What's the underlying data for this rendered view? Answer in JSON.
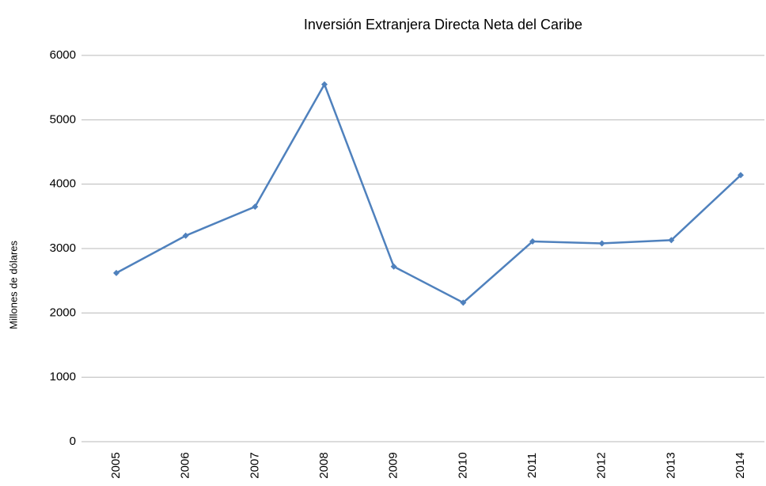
{
  "chart_data": {
    "type": "line",
    "title": "Inversión Extranjera Directa Neta del Caribe",
    "y_label": "Millones de dólares",
    "categories": [
      "2005",
      "2006",
      "2007",
      "2008",
      "2009",
      "2010",
      "2011",
      "2012",
      "2013",
      "2014"
    ],
    "values": [
      2620,
      3200,
      3650,
      5550,
      2720,
      2160,
      3110,
      3080,
      3130,
      4140
    ],
    "color": "#4f81bd",
    "ylim": [
      0,
      6000
    ],
    "yticks": [
      0,
      1000,
      2000,
      3000,
      4000,
      5000,
      6000
    ],
    "grid": true
  }
}
